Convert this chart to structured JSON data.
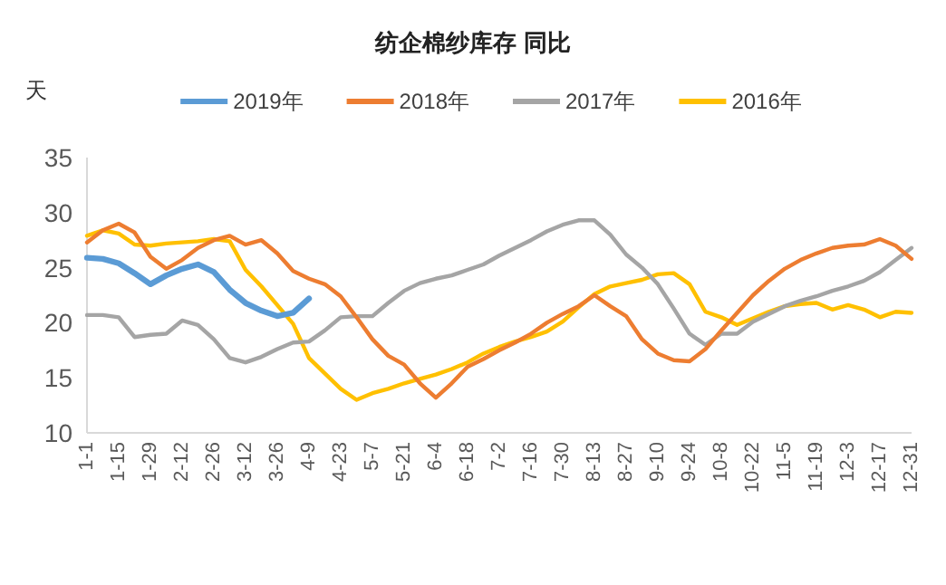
{
  "chart_data": {
    "type": "line",
    "title": "纺企棉纱库存 同比",
    "ylabel": "天",
    "legend": "top",
    "grid": false,
    "categories": [
      "1-1",
      null,
      "1-15",
      null,
      "1-29",
      null,
      "2-12",
      null,
      "2-26",
      null,
      "3-12",
      null,
      "3-26",
      null,
      "4-9",
      null,
      "4-23",
      null,
      "5-7",
      null,
      "5-21",
      null,
      "6-4",
      null,
      "6-18",
      null,
      "7-2",
      null,
      "7-16",
      null,
      "7-30",
      null,
      "8-13",
      null,
      "8-27",
      null,
      "9-10",
      null,
      "9-24",
      null,
      "10-8",
      null,
      "10-22",
      null,
      "11-5",
      null,
      "11-19",
      null,
      "12-3",
      null,
      "12-17",
      null,
      "12-31"
    ],
    "ylim": [
      10,
      35
    ],
    "yticks": [
      10,
      15,
      20,
      25,
      30,
      35
    ],
    "series": [
      {
        "name": "2019年",
        "color": "#5b9bd5",
        "values": [
          25.9,
          25.8,
          25.4,
          24.5,
          23.5,
          24.3,
          24.9,
          25.3,
          24.6,
          23.0,
          21.8,
          21.1,
          20.6,
          20.9,
          22.2,
          null,
          null,
          null,
          null,
          null,
          null,
          null,
          null,
          null,
          null,
          null,
          null,
          null,
          null,
          null,
          null,
          null,
          null,
          null,
          null,
          null,
          null,
          null,
          null,
          null,
          null,
          null,
          null,
          null,
          null,
          null,
          null,
          null,
          null,
          null,
          null,
          null,
          null
        ]
      },
      {
        "name": "2018年",
        "color": "#ed7d31",
        "values": [
          27.3,
          28.4,
          29.0,
          28.2,
          26.0,
          24.9,
          25.7,
          26.8,
          27.5,
          27.9,
          27.1,
          27.5,
          26.3,
          24.7,
          24.0,
          23.5,
          22.4,
          20.5,
          18.5,
          17.0,
          16.2,
          14.5,
          13.2,
          14.5,
          16.0,
          16.7,
          17.5,
          18.2,
          19.0,
          20.0,
          20.8,
          21.5,
          22.5,
          21.5,
          20.6,
          18.5,
          17.2,
          16.6,
          16.5,
          17.6,
          19.3,
          20.9,
          22.5,
          23.8,
          24.9,
          25.7,
          26.3,
          26.8,
          27.0,
          27.1,
          27.6,
          27.0,
          25.8
        ]
      },
      {
        "name": "2017年",
        "color": "#a5a5a5",
        "values": [
          20.7,
          20.7,
          20.5,
          18.7,
          18.9,
          19.0,
          20.2,
          19.8,
          18.5,
          16.8,
          16.4,
          16.9,
          17.6,
          18.2,
          18.3,
          19.3,
          20.5,
          20.6,
          20.6,
          21.8,
          22.9,
          23.6,
          24.0,
          24.3,
          24.8,
          25.3,
          26.1,
          26.8,
          27.5,
          28.3,
          28.9,
          29.3,
          29.3,
          28.0,
          26.2,
          25.0,
          23.5,
          21.3,
          19.0,
          18.0,
          19.0,
          19.0,
          20.1,
          20.8,
          21.5,
          22.0,
          22.4,
          22.9,
          23.3,
          23.8,
          24.6,
          25.7,
          26.8
        ]
      },
      {
        "name": "2016年",
        "color": "#ffc000",
        "values": [
          27.9,
          28.4,
          28.1,
          27.1,
          27.0,
          27.2,
          27.3,
          27.4,
          27.6,
          27.4,
          24.8,
          23.3,
          21.6,
          19.9,
          16.8,
          15.4,
          14.0,
          13.0,
          13.6,
          14.0,
          14.5,
          14.9,
          15.3,
          15.8,
          16.4,
          17.2,
          17.8,
          18.3,
          18.7,
          19.2,
          20.1,
          21.4,
          22.6,
          23.3,
          23.6,
          23.9,
          24.4,
          24.5,
          23.5,
          21.0,
          20.5,
          19.8,
          20.4,
          21.0,
          21.5,
          21.7,
          21.8,
          21.2,
          21.6,
          21.2,
          20.5,
          21.0,
          20.9
        ]
      }
    ]
  }
}
